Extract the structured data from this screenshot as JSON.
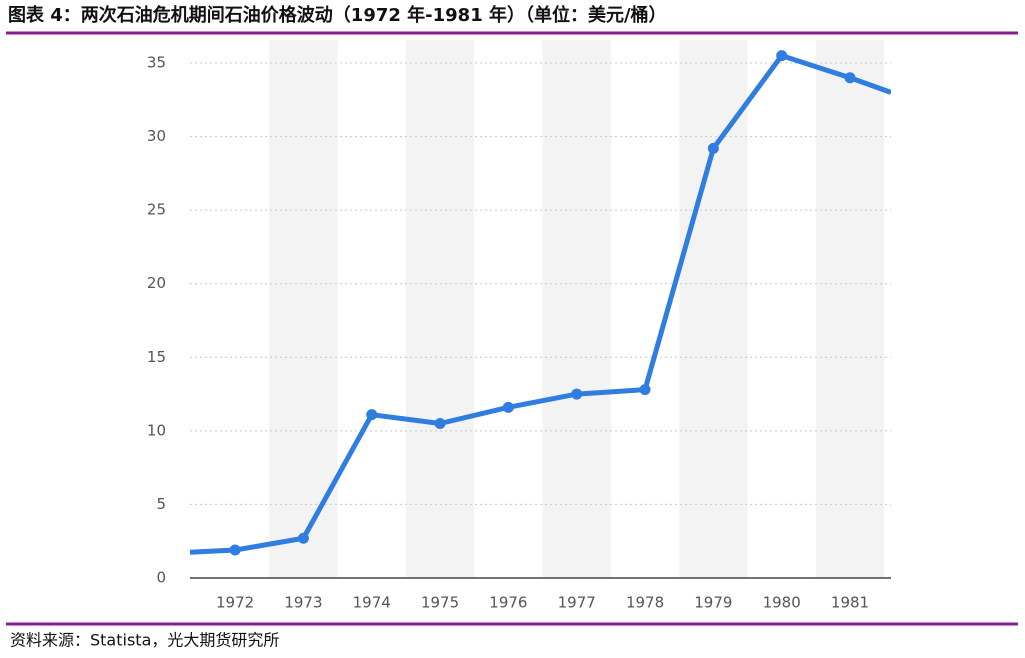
{
  "chart_data": {
    "type": "line",
    "title": "图表 4：两次石油危机期间石油价格波动（1972 年-1981 年）（单位：美元/桶）",
    "source": "资料来源：Statista，光大期货研究所",
    "x": [
      1971.34,
      1972,
      1973,
      1974,
      1975,
      1976,
      1977,
      1978,
      1979,
      1980,
      1981,
      1981.6
    ],
    "series": [
      {
        "color": "#2f7de1",
        "values": [
          1.75,
          1.9,
          2.7,
          11.1,
          10.5,
          11.6,
          12.5,
          12.8,
          29.2,
          35.5,
          34.0,
          33.0
        ]
      }
    ],
    "xlim": [
      1971.34,
      1981.6
    ],
    "xticks": [
      1972,
      1973,
      1974,
      1975,
      1976,
      1977,
      1978,
      1979,
      1980,
      1981
    ],
    "ylim": [
      0,
      35
    ],
    "yticks": [
      0,
      5,
      10,
      15,
      20,
      25,
      30,
      35
    ],
    "grid": true
  }
}
